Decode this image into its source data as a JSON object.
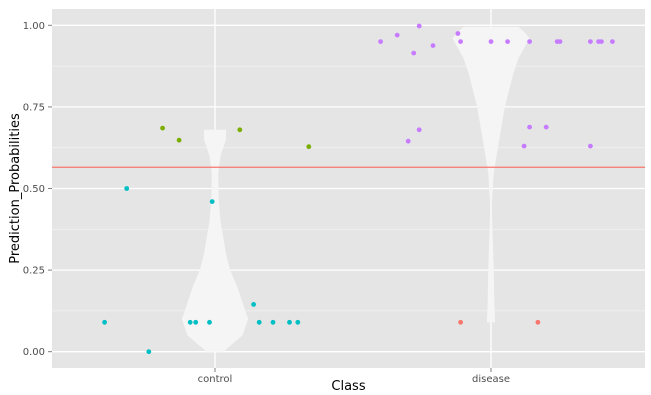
{
  "chart_data": {
    "type": "scatter",
    "title": "",
    "xlabel": "Class",
    "ylabel": "Prediction_Probabilities",
    "categories": [
      "control",
      "disease"
    ],
    "ylim": [
      -0.05,
      1.05
    ],
    "y_ticks": [
      0.0,
      0.25,
      0.5,
      0.75,
      1.0
    ],
    "y_tick_labels": [
      "0.00",
      "0.25",
      "0.50",
      "0.75",
      "1.00"
    ],
    "grid": true,
    "legend": "none",
    "hline": {
      "y": 0.565,
      "color": "#f8766d"
    },
    "colors": {
      "panel": "#e5e5e5",
      "grid": "#ffffff",
      "violin": "#f5f5f5",
      "cyan": "#00bfc4",
      "olive": "#7cae00",
      "purple": "#c77cff",
      "red": "#f8766d"
    },
    "violins": [
      {
        "category": "control",
        "profile": [
          [
            0.0,
            0.03
          ],
          [
            0.05,
            0.1
          ],
          [
            0.1,
            0.12
          ],
          [
            0.15,
            0.1
          ],
          [
            0.2,
            0.08
          ],
          [
            0.25,
            0.055
          ],
          [
            0.3,
            0.04
          ],
          [
            0.35,
            0.03
          ],
          [
            0.4,
            0.02
          ],
          [
            0.45,
            0.015
          ],
          [
            0.5,
            0.012
          ],
          [
            0.55,
            0.012
          ],
          [
            0.6,
            0.02
          ],
          [
            0.65,
            0.04
          ],
          [
            0.68,
            0.04
          ]
        ]
      },
      {
        "category": "disease",
        "profile": [
          [
            0.09,
            0.015
          ],
          [
            0.15,
            0.012
          ],
          [
            0.25,
            0.01
          ],
          [
            0.35,
            0.006
          ],
          [
            0.45,
            0.003
          ],
          [
            0.55,
            0.01
          ],
          [
            0.65,
            0.03
          ],
          [
            0.75,
            0.05
          ],
          [
            0.85,
            0.08
          ],
          [
            0.9,
            0.1
          ],
          [
            0.93,
            0.12
          ],
          [
            0.96,
            0.14
          ],
          [
            0.98,
            0.12
          ],
          [
            0.995,
            0.1
          ]
        ]
      }
    ],
    "series": [
      {
        "color_key": "cyan",
        "points": [
          {
            "x": "control",
            "dx": -0.4,
            "y": 0.09
          },
          {
            "x": "control",
            "dx": -0.32,
            "y": 0.5
          },
          {
            "x": "control",
            "dx": -0.24,
            "y": 0.0
          },
          {
            "x": "control",
            "dx": -0.09,
            "y": 0.09
          },
          {
            "x": "control",
            "dx": -0.07,
            "y": 0.09
          },
          {
            "x": "control",
            "dx": -0.02,
            "y": 0.09
          },
          {
            "x": "control",
            "dx": -0.01,
            "y": 0.46
          },
          {
            "x": "control",
            "dx": 0.14,
            "y": 0.145
          },
          {
            "x": "control",
            "dx": 0.16,
            "y": 0.09
          },
          {
            "x": "control",
            "dx": 0.21,
            "y": 0.09
          },
          {
            "x": "control",
            "dx": 0.27,
            "y": 0.09
          },
          {
            "x": "control",
            "dx": 0.3,
            "y": 0.09
          }
        ]
      },
      {
        "color_key": "olive",
        "points": [
          {
            "x": "control",
            "dx": -0.19,
            "y": 0.685
          },
          {
            "x": "control",
            "dx": -0.13,
            "y": 0.648
          },
          {
            "x": "control",
            "dx": 0.09,
            "y": 0.68
          },
          {
            "x": "control",
            "dx": 0.34,
            "y": 0.628
          }
        ]
      },
      {
        "color_key": "purple",
        "points": [
          {
            "x": "disease",
            "dx": -0.4,
            "y": 0.95
          },
          {
            "x": "disease",
            "dx": -0.34,
            "y": 0.97
          },
          {
            "x": "disease",
            "dx": -0.3,
            "y": 0.645
          },
          {
            "x": "disease",
            "dx": -0.28,
            "y": 0.915
          },
          {
            "x": "disease",
            "dx": -0.26,
            "y": 0.68
          },
          {
            "x": "disease",
            "dx": -0.26,
            "y": 0.998
          },
          {
            "x": "disease",
            "dx": -0.21,
            "y": 0.938
          },
          {
            "x": "disease",
            "dx": -0.12,
            "y": 0.975
          },
          {
            "x": "disease",
            "dx": -0.11,
            "y": 0.95
          },
          {
            "x": "disease",
            "dx": 0.0,
            "y": 0.95
          },
          {
            "x": "disease",
            "dx": 0.06,
            "y": 0.95
          },
          {
            "x": "disease",
            "dx": 0.12,
            "y": 0.63
          },
          {
            "x": "disease",
            "dx": 0.14,
            "y": 0.688
          },
          {
            "x": "disease",
            "dx": 0.14,
            "y": 0.95
          },
          {
            "x": "disease",
            "dx": 0.2,
            "y": 0.688
          },
          {
            "x": "disease",
            "dx": 0.24,
            "y": 0.95
          },
          {
            "x": "disease",
            "dx": 0.25,
            "y": 0.95
          },
          {
            "x": "disease",
            "dx": 0.36,
            "y": 0.63
          },
          {
            "x": "disease",
            "dx": 0.36,
            "y": 0.95
          },
          {
            "x": "disease",
            "dx": 0.39,
            "y": 0.95
          },
          {
            "x": "disease",
            "dx": 0.4,
            "y": 0.95
          },
          {
            "x": "disease",
            "dx": 0.44,
            "y": 0.95
          }
        ]
      },
      {
        "color_key": "red",
        "points": [
          {
            "x": "disease",
            "dx": -0.11,
            "y": 0.09
          },
          {
            "x": "disease",
            "dx": 0.17,
            "y": 0.09
          }
        ]
      }
    ]
  }
}
